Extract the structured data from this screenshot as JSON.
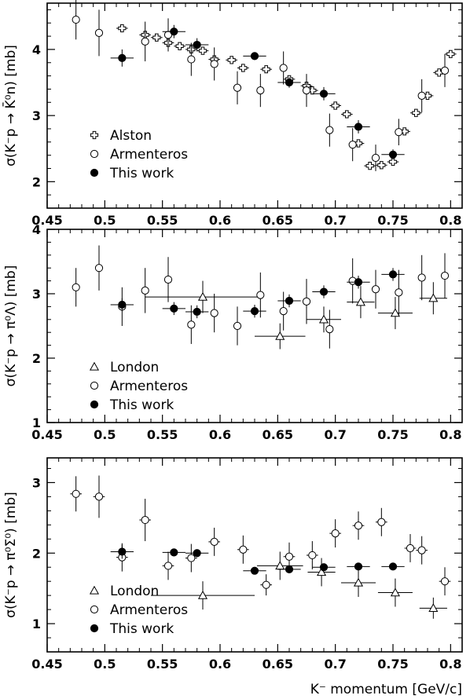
{
  "chart_data": [
    {
      "type": "scatter",
      "ylabel": "σ(K⁻p → K̄⁰n) [mb]",
      "xlim": [
        0.45,
        0.81
      ],
      "ylim": [
        1.6,
        4.7
      ],
      "xticks": [
        "0.45",
        "0.5",
        "0.55",
        "0.6",
        "0.65",
        "0.7",
        "0.75",
        "0.8"
      ],
      "yticks": [
        2,
        3,
        4
      ],
      "legend_position": "bottom-left",
      "series": [
        {
          "name": "Alston",
          "marker": "cross",
          "points": [
            {
              "x": 0.515,
              "y": 4.32,
              "ex": 0.005,
              "ey": 0.05
            },
            {
              "x": 0.535,
              "y": 4.22,
              "ex": 0.005,
              "ey": 0.05
            },
            {
              "x": 0.545,
              "y": 4.18,
              "ex": 0.005,
              "ey": 0.05
            },
            {
              "x": 0.555,
              "y": 4.1,
              "ex": 0.005,
              "ey": 0.05
            },
            {
              "x": 0.565,
              "y": 4.05,
              "ex": 0.005,
              "ey": 0.05
            },
            {
              "x": 0.575,
              "y": 4.0,
              "ex": 0.005,
              "ey": 0.05
            },
            {
              "x": 0.585,
              "y": 3.98,
              "ex": 0.005,
              "ey": 0.05
            },
            {
              "x": 0.595,
              "y": 3.85,
              "ex": 0.005,
              "ey": 0.05
            },
            {
              "x": 0.61,
              "y": 3.84,
              "ex": 0.005,
              "ey": 0.05
            },
            {
              "x": 0.62,
              "y": 3.72,
              "ex": 0.005,
              "ey": 0.05
            },
            {
              "x": 0.64,
              "y": 3.7,
              "ex": 0.005,
              "ey": 0.05
            },
            {
              "x": 0.66,
              "y": 3.55,
              "ex": 0.005,
              "ey": 0.05
            },
            {
              "x": 0.675,
              "y": 3.45,
              "ex": 0.005,
              "ey": 0.05
            },
            {
              "x": 0.68,
              "y": 3.38,
              "ex": 0.005,
              "ey": 0.05
            },
            {
              "x": 0.7,
              "y": 3.15,
              "ex": 0.005,
              "ey": 0.05
            },
            {
              "x": 0.71,
              "y": 3.02,
              "ex": 0.005,
              "ey": 0.05
            },
            {
              "x": 0.72,
              "y": 2.58,
              "ex": 0.005,
              "ey": 0.05
            },
            {
              "x": 0.73,
              "y": 2.24,
              "ex": 0.005,
              "ey": 0.05
            },
            {
              "x": 0.74,
              "y": 2.25,
              "ex": 0.005,
              "ey": 0.05
            },
            {
              "x": 0.75,
              "y": 2.3,
              "ex": 0.005,
              "ey": 0.05
            },
            {
              "x": 0.76,
              "y": 2.76,
              "ex": 0.005,
              "ey": 0.05
            },
            {
              "x": 0.77,
              "y": 3.04,
              "ex": 0.005,
              "ey": 0.05
            },
            {
              "x": 0.78,
              "y": 3.3,
              "ex": 0.005,
              "ey": 0.05
            },
            {
              "x": 0.79,
              "y": 3.65,
              "ex": 0.005,
              "ey": 0.05
            },
            {
              "x": 0.8,
              "y": 3.93,
              "ex": 0.005,
              "ey": 0.05
            }
          ]
        },
        {
          "name": "Armenteros",
          "marker": "open-circle",
          "points": [
            {
              "x": 0.475,
              "y": 4.45,
              "ex": 0,
              "ey": 0.3
            },
            {
              "x": 0.495,
              "y": 4.25,
              "ex": 0,
              "ey": 0.35
            },
            {
              "x": 0.535,
              "y": 4.12,
              "ex": 0,
              "ey": 0.3
            },
            {
              "x": 0.555,
              "y": 4.22,
              "ex": 0,
              "ey": 0.25
            },
            {
              "x": 0.575,
              "y": 3.85,
              "ex": 0,
              "ey": 0.25
            },
            {
              "x": 0.595,
              "y": 3.78,
              "ex": 0,
              "ey": 0.25
            },
            {
              "x": 0.615,
              "y": 3.42,
              "ex": 0,
              "ey": 0.25
            },
            {
              "x": 0.635,
              "y": 3.38,
              "ex": 0,
              "ey": 0.25
            },
            {
              "x": 0.655,
              "y": 3.72,
              "ex": 0,
              "ey": 0.25
            },
            {
              "x": 0.675,
              "y": 3.38,
              "ex": 0,
              "ey": 0.25
            },
            {
              "x": 0.695,
              "y": 2.78,
              "ex": 0,
              "ey": 0.25
            },
            {
              "x": 0.715,
              "y": 2.56,
              "ex": 0,
              "ey": 0.25
            },
            {
              "x": 0.735,
              "y": 2.36,
              "ex": 0,
              "ey": 0.2
            },
            {
              "x": 0.755,
              "y": 2.75,
              "ex": 0,
              "ey": 0.2
            },
            {
              "x": 0.775,
              "y": 3.3,
              "ex": 0,
              "ey": 0.25
            },
            {
              "x": 0.795,
              "y": 3.68,
              "ex": 0,
              "ey": 0.25
            }
          ]
        },
        {
          "name": "This work",
          "marker": "filled-circle",
          "points": [
            {
              "x": 0.515,
              "y": 3.87,
              "ex": 0.01,
              "ey": 0.13
            },
            {
              "x": 0.56,
              "y": 4.27,
              "ex": 0.01,
              "ey": 0.1
            },
            {
              "x": 0.58,
              "y": 4.07,
              "ex": 0.01,
              "ey": 0.1
            },
            {
              "x": 0.63,
              "y": 3.9,
              "ex": 0.01,
              "ey": 0.05
            },
            {
              "x": 0.66,
              "y": 3.5,
              "ex": 0.01,
              "ey": 0.08
            },
            {
              "x": 0.69,
              "y": 3.33,
              "ex": 0.01,
              "ey": 0.1
            },
            {
              "x": 0.72,
              "y": 2.83,
              "ex": 0.01,
              "ey": 0.1
            },
            {
              "x": 0.75,
              "y": 2.41,
              "ex": 0.01,
              "ey": 0.08
            }
          ]
        }
      ]
    },
    {
      "type": "scatter",
      "ylabel": "σ(K⁻p → π⁰Λ) [mb]",
      "xlim": [
        0.45,
        0.81
      ],
      "ylim": [
        1,
        4
      ],
      "xticks": [
        "0.45",
        "0.5",
        "0.55",
        "0.6",
        "0.65",
        "0.7",
        "0.75",
        "0.8"
      ],
      "yticks": [
        1,
        2,
        3,
        4
      ],
      "legend_position": "bottom-left",
      "series": [
        {
          "name": "London",
          "marker": "open-triangle",
          "points": [
            {
              "x": 0.585,
              "y": 2.95,
              "ex": 0.05,
              "ey": 0.25
            },
            {
              "x": 0.652,
              "y": 2.34,
              "ex": 0.022,
              "ey": 0.2
            },
            {
              "x": 0.69,
              "y": 2.6,
              "ex": 0.015,
              "ey": 0.2
            },
            {
              "x": 0.722,
              "y": 2.87,
              "ex": 0.012,
              "ey": 0.25
            },
            {
              "x": 0.752,
              "y": 2.7,
              "ex": 0.015,
              "ey": 0.25
            },
            {
              "x": 0.785,
              "y": 2.93,
              "ex": 0.012,
              "ey": 0.25
            }
          ]
        },
        {
          "name": "Armenteros",
          "marker": "open-circle",
          "points": [
            {
              "x": 0.475,
              "y": 3.1,
              "ex": 0,
              "ey": 0.3
            },
            {
              "x": 0.495,
              "y": 3.4,
              "ex": 0,
              "ey": 0.35
            },
            {
              "x": 0.515,
              "y": 2.8,
              "ex": 0,
              "ey": 0.3
            },
            {
              "x": 0.535,
              "y": 3.05,
              "ex": 0,
              "ey": 0.35
            },
            {
              "x": 0.555,
              "y": 3.22,
              "ex": 0,
              "ey": 0.35
            },
            {
              "x": 0.575,
              "y": 2.52,
              "ex": 0,
              "ey": 0.3
            },
            {
              "x": 0.595,
              "y": 2.7,
              "ex": 0,
              "ey": 0.3
            },
            {
              "x": 0.615,
              "y": 2.5,
              "ex": 0,
              "ey": 0.3
            },
            {
              "x": 0.635,
              "y": 2.98,
              "ex": 0,
              "ey": 0.35
            },
            {
              "x": 0.655,
              "y": 2.73,
              "ex": 0,
              "ey": 0.3
            },
            {
              "x": 0.675,
              "y": 2.88,
              "ex": 0,
              "ey": 0.35
            },
            {
              "x": 0.695,
              "y": 2.45,
              "ex": 0,
              "ey": 0.3
            },
            {
              "x": 0.715,
              "y": 3.2,
              "ex": 0,
              "ey": 0.35
            },
            {
              "x": 0.735,
              "y": 3.07,
              "ex": 0,
              "ey": 0.3
            },
            {
              "x": 0.755,
              "y": 3.02,
              "ex": 0,
              "ey": 0.35
            },
            {
              "x": 0.775,
              "y": 3.25,
              "ex": 0,
              "ey": 0.35
            },
            {
              "x": 0.795,
              "y": 3.28,
              "ex": 0,
              "ey": 0.35
            }
          ]
        },
        {
          "name": "This work",
          "marker": "filled-circle",
          "points": [
            {
              "x": 0.515,
              "y": 2.83,
              "ex": 0.01,
              "ey": 0.1
            },
            {
              "x": 0.56,
              "y": 2.77,
              "ex": 0.01,
              "ey": 0.1
            },
            {
              "x": 0.58,
              "y": 2.72,
              "ex": 0.01,
              "ey": 0.1
            },
            {
              "x": 0.63,
              "y": 2.73,
              "ex": 0.01,
              "ey": 0.1
            },
            {
              "x": 0.66,
              "y": 2.89,
              "ex": 0.01,
              "ey": 0.1
            },
            {
              "x": 0.69,
              "y": 3.03,
              "ex": 0.01,
              "ey": 0.1
            },
            {
              "x": 0.72,
              "y": 3.18,
              "ex": 0.01,
              "ey": 0.1
            },
            {
              "x": 0.75,
              "y": 3.3,
              "ex": 0.01,
              "ey": 0.1
            }
          ]
        }
      ]
    },
    {
      "type": "scatter",
      "ylabel": "σ(K⁻p → π⁰Σ⁰) [mb]",
      "xlabel": "K⁻ momentum [GeV/c]",
      "xlim": [
        0.45,
        0.81
      ],
      "ylim": [
        0.6,
        3.35
      ],
      "xticks": [
        "0.45",
        "0.5",
        "0.55",
        "0.6",
        "0.65",
        "0.7",
        "0.75",
        "0.8"
      ],
      "yticks": [
        1,
        2,
        3
      ],
      "legend_position": "bottom-left",
      "series": [
        {
          "name": "London",
          "marker": "open-triangle",
          "points": [
            {
              "x": 0.585,
              "y": 1.4,
              "ex": 0.045,
              "ey": 0.2
            },
            {
              "x": 0.652,
              "y": 1.82,
              "ex": 0.02,
              "ey": 0.2
            },
            {
              "x": 0.688,
              "y": 1.73,
              "ex": 0.012,
              "ey": 0.2
            },
            {
              "x": 0.72,
              "y": 1.58,
              "ex": 0.015,
              "ey": 0.2
            },
            {
              "x": 0.752,
              "y": 1.44,
              "ex": 0.015,
              "ey": 0.2
            },
            {
              "x": 0.785,
              "y": 1.22,
              "ex": 0.012,
              "ey": 0.15
            }
          ]
        },
        {
          "name": "Armenteros",
          "marker": "open-circle",
          "points": [
            {
              "x": 0.475,
              "y": 2.84,
              "ex": 0.005,
              "ey": 0.25
            },
            {
              "x": 0.495,
              "y": 2.8,
              "ex": 0.005,
              "ey": 0.3
            },
            {
              "x": 0.515,
              "y": 1.94,
              "ex": 0.005,
              "ey": 0.2
            },
            {
              "x": 0.535,
              "y": 2.47,
              "ex": 0.005,
              "ey": 0.3
            },
            {
              "x": 0.555,
              "y": 1.82,
              "ex": 0.005,
              "ey": 0.2
            },
            {
              "x": 0.575,
              "y": 1.93,
              "ex": 0.005,
              "ey": 0.2
            },
            {
              "x": 0.595,
              "y": 2.16,
              "ex": 0.005,
              "ey": 0.2
            },
            {
              "x": 0.62,
              "y": 2.05,
              "ex": 0.005,
              "ey": 0.2
            },
            {
              "x": 0.64,
              "y": 1.55,
              "ex": 0.005,
              "ey": 0.15
            },
            {
              "x": 0.66,
              "y": 1.95,
              "ex": 0.005,
              "ey": 0.2
            },
            {
              "x": 0.68,
              "y": 1.97,
              "ex": 0.005,
              "ey": 0.2
            },
            {
              "x": 0.7,
              "y": 2.28,
              "ex": 0.005,
              "ey": 0.2
            },
            {
              "x": 0.72,
              "y": 2.39,
              "ex": 0.005,
              "ey": 0.2
            },
            {
              "x": 0.74,
              "y": 2.44,
              "ex": 0.005,
              "ey": 0.2
            },
            {
              "x": 0.765,
              "y": 2.07,
              "ex": 0.005,
              "ey": 0.2
            },
            {
              "x": 0.775,
              "y": 2.04,
              "ex": 0.005,
              "ey": 0.2
            },
            {
              "x": 0.795,
              "y": 1.6,
              "ex": 0.005,
              "ey": 0.2
            }
          ]
        },
        {
          "name": "This work",
          "marker": "filled-circle",
          "points": [
            {
              "x": 0.515,
              "y": 2.02,
              "ex": 0.01,
              "ey": 0.1
            },
            {
              "x": 0.56,
              "y": 2.01,
              "ex": 0.01,
              "ey": 0.05
            },
            {
              "x": 0.58,
              "y": 2.0,
              "ex": 0.01,
              "ey": 0.05
            },
            {
              "x": 0.63,
              "y": 1.75,
              "ex": 0.01,
              "ey": 0.05
            },
            {
              "x": 0.66,
              "y": 1.77,
              "ex": 0.01,
              "ey": 0.05
            },
            {
              "x": 0.69,
              "y": 1.8,
              "ex": 0.01,
              "ey": 0.05
            },
            {
              "x": 0.72,
              "y": 1.81,
              "ex": 0.01,
              "ey": 0.05
            },
            {
              "x": 0.75,
              "y": 1.81,
              "ex": 0.01,
              "ey": 0.05
            }
          ]
        }
      ]
    }
  ]
}
